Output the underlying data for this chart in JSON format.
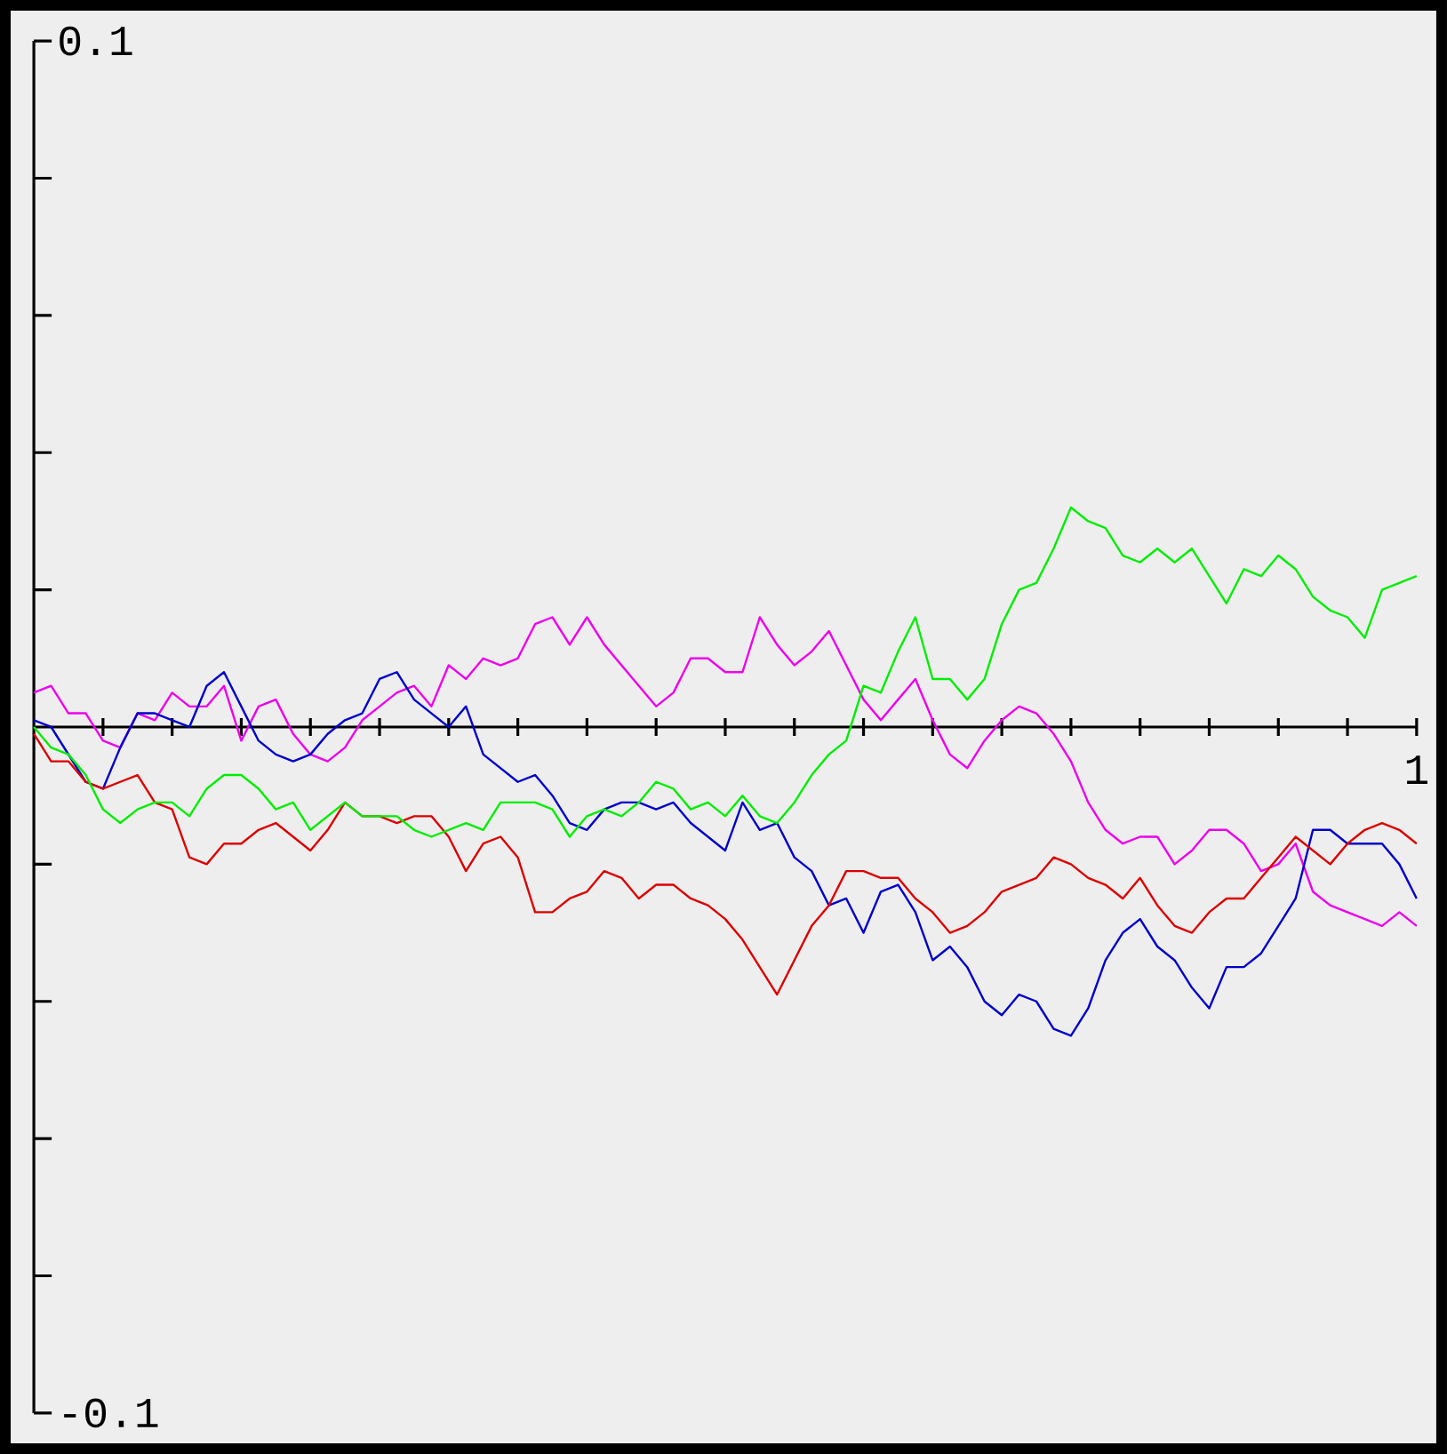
{
  "chart_data": {
    "type": "line",
    "ylim": [
      -0.1,
      0.1
    ],
    "categories": [
      null,
      null,
      null,
      null,
      null,
      null,
      null,
      null,
      null,
      null,
      null,
      null,
      null,
      null,
      null,
      null,
      null,
      null,
      null,
      null,
      null,
      null,
      null,
      null,
      null,
      null,
      null,
      null,
      null,
      null,
      null,
      null,
      null,
      null,
      null,
      null,
      null,
      null,
      null,
      null,
      null,
      null,
      null,
      null,
      null,
      null,
      null,
      null,
      null,
      null,
      null,
      null,
      null,
      null,
      null,
      null,
      null,
      null,
      null,
      null,
      null,
      null,
      null,
      null,
      null,
      null,
      null,
      null,
      null,
      null,
      null,
      null,
      null,
      null,
      null,
      null,
      null,
      null,
      null,
      null,
      "1"
    ],
    "yticks": [
      {
        "value": -0.1,
        "label": "-0.1"
      },
      {
        "value": -0.08,
        "label": null
      },
      {
        "value": -0.06,
        "label": null
      },
      {
        "value": -0.04,
        "label": null
      },
      {
        "value": -0.02,
        "label": null
      },
      {
        "value": 0.02,
        "label": null
      },
      {
        "value": 0.04,
        "label": null
      },
      {
        "value": 0.06,
        "label": null
      },
      {
        "value": 0.08,
        "label": null
      },
      {
        "value": 0.1,
        "label": "0.1"
      }
    ],
    "series": [
      {
        "color": "#ee00ee",
        "values": [
          0.005,
          0.006,
          0.002,
          0.002,
          -0.002,
          -0.003,
          0.002,
          0.001,
          0.005,
          0.003,
          0.003,
          0.006,
          -0.002,
          0.003,
          0.004,
          -0.001,
          -0.004,
          -0.005,
          -0.003,
          0.001,
          0.003,
          0.005,
          0.006,
          0.003,
          0.009,
          0.007,
          0.01,
          0.009,
          0.01,
          0.015,
          0.016,
          0.012,
          0.016,
          0.012,
          0.009,
          0.006,
          0.003,
          0.005,
          0.01,
          0.01,
          0.008,
          0.008,
          0.016,
          0.012,
          0.009,
          0.011,
          0.014,
          0.009,
          0.004,
          0.001,
          0.004,
          0.007,
          0.001,
          -0.004,
          -0.006,
          -0.002,
          0.001,
          0.003,
          0.002,
          -0.001,
          -0.005,
          -0.011,
          -0.015,
          -0.017,
          -0.016,
          -0.016,
          -0.02,
          -0.018,
          -0.015,
          -0.015,
          -0.017,
          -0.021,
          -0.02,
          -0.017,
          -0.024,
          -0.026,
          -0.027,
          -0.028,
          -0.029,
          -0.027,
          -0.029
        ]
      },
      {
        "color": "#0000cc",
        "values": [
          0.001,
          0,
          -0.004,
          -0.008,
          -0.009,
          -0.003,
          0.002,
          0.002,
          0.001,
          0,
          0.006,
          0.008,
          0.003,
          -0.002,
          -0.004,
          -0.005,
          -0.004,
          -0.001,
          0.001,
          0.002,
          0.007,
          0.008,
          0.004,
          0.002,
          0,
          0.003,
          -0.004,
          -0.006,
          -0.008,
          -0.007,
          -0.01,
          -0.014,
          -0.015,
          -0.012,
          -0.011,
          -0.011,
          -0.012,
          -0.011,
          -0.014,
          -0.016,
          -0.018,
          -0.011,
          -0.015,
          -0.014,
          -0.019,
          -0.021,
          -0.026,
          -0.025,
          -0.03,
          -0.024,
          -0.023,
          -0.027,
          -0.034,
          -0.032,
          -0.035,
          -0.04,
          -0.042,
          -0.039,
          -0.04,
          -0.044,
          -0.045,
          -0.041,
          -0.034,
          -0.03,
          -0.028,
          -0.032,
          -0.034,
          -0.038,
          -0.041,
          -0.035,
          -0.035,
          -0.033,
          -0.029,
          -0.025,
          -0.015,
          -0.015,
          -0.017,
          -0.017,
          -0.017,
          -0.02,
          -0.025
        ]
      },
      {
        "color": "#dd0000",
        "values": [
          -0.001,
          -0.005,
          -0.005,
          -0.008,
          -0.009,
          -0.008,
          -0.007,
          -0.011,
          -0.012,
          -0.019,
          -0.02,
          -0.017,
          -0.017,
          -0.015,
          -0.014,
          -0.016,
          -0.018,
          -0.015,
          -0.011,
          -0.013,
          -0.013,
          -0.014,
          -0.013,
          -0.013,
          -0.016,
          -0.021,
          -0.017,
          -0.016,
          -0.019,
          -0.027,
          -0.027,
          -0.025,
          -0.024,
          -0.021,
          -0.022,
          -0.025,
          -0.023,
          -0.023,
          -0.025,
          -0.026,
          -0.028,
          -0.031,
          -0.035,
          -0.039,
          -0.034,
          -0.029,
          -0.026,
          -0.021,
          -0.021,
          -0.022,
          -0.022,
          -0.025,
          -0.027,
          -0.03,
          -0.029,
          -0.027,
          -0.024,
          -0.023,
          -0.022,
          -0.019,
          -0.02,
          -0.022,
          -0.023,
          -0.025,
          -0.022,
          -0.026,
          -0.029,
          -0.03,
          -0.027,
          -0.025,
          -0.025,
          -0.022,
          -0.019,
          -0.016,
          -0.018,
          -0.02,
          -0.017,
          -0.015,
          -0.014,
          -0.015,
          -0.017
        ]
      },
      {
        "color": "#00ee00",
        "values": [
          0,
          -0.003,
          -0.004,
          -0.007,
          -0.012,
          -0.014,
          -0.012,
          -0.011,
          -0.011,
          -0.013,
          -0.009,
          -0.007,
          -0.007,
          -0.009,
          -0.012,
          -0.011,
          -0.015,
          -0.013,
          -0.011,
          -0.013,
          -0.013,
          -0.013,
          -0.015,
          -0.016,
          -0.015,
          -0.014,
          -0.015,
          -0.011,
          -0.011,
          -0.011,
          -0.012,
          -0.016,
          -0.013,
          -0.012,
          -0.013,
          -0.011,
          -0.008,
          -0.009,
          -0.012,
          -0.011,
          -0.013,
          -0.01,
          -0.013,
          -0.014,
          -0.011,
          -0.007,
          -0.004,
          -0.002,
          0.006,
          0.005,
          0.011,
          0.016,
          0.007,
          0.007,
          0.004,
          0.007,
          0.015,
          0.02,
          0.021,
          0.026,
          0.032,
          0.03,
          0.029,
          0.025,
          0.024,
          0.026,
          0.024,
          0.026,
          0.022,
          0.018,
          0.023,
          0.022,
          0.025,
          0.023,
          0.019,
          0.017,
          0.016,
          0.013,
          0.02,
          0.021,
          0.022
        ]
      }
    ]
  }
}
